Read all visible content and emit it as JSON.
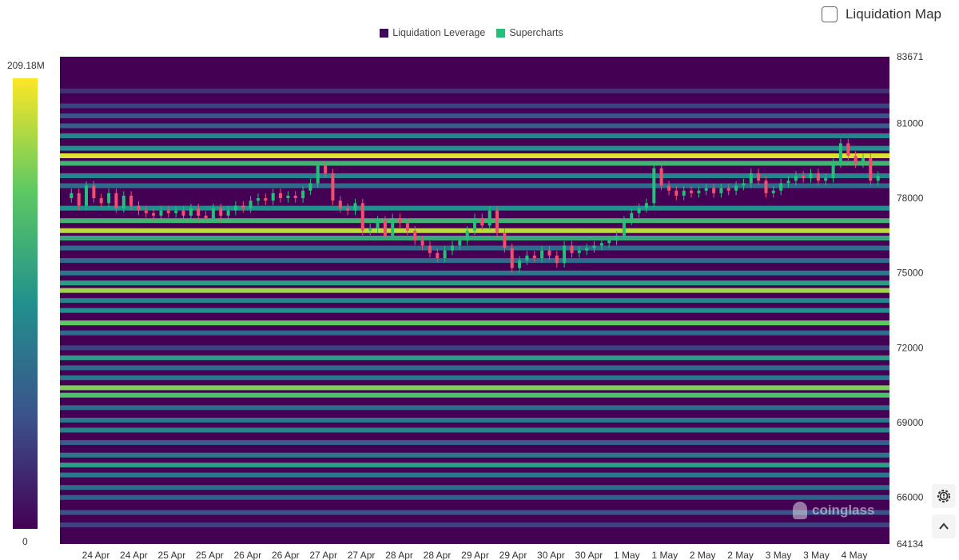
{
  "legend": {
    "items": [
      {
        "label": "Liquidation Leverage",
        "color": "#3d0a5b"
      },
      {
        "label": "Supercharts",
        "color": "#21c17a"
      }
    ]
  },
  "toggle": {
    "label": "Liquidation Map",
    "checked": false
  },
  "colorbar": {
    "max_label": "209.18M",
    "min_label": "0"
  },
  "watermark": {
    "text": "coinglass",
    "icon": "coinglass-logo-icon"
  },
  "controls": {
    "settings_icon": "gear-icon",
    "collapse_icon": "chevron-up-icon"
  },
  "colors": {
    "background": "#440154",
    "up_candle": "#21c17a",
    "down_candle": "#f0506e",
    "scale": [
      "#440154",
      "#3b528b",
      "#21908d",
      "#5dc963",
      "#fde725"
    ]
  },
  "chart_data": {
    "type": "heatmap",
    "title": "",
    "ylim": [
      64134,
      83671
    ],
    "y_ticks": [
      "83671",
      "81000",
      "78000",
      "75000",
      "72000",
      "69000",
      "66000",
      "64134"
    ],
    "x_ticks": [
      "24 Apr",
      "24 Apr",
      "25 Apr",
      "25 Apr",
      "26 Apr",
      "26 Apr",
      "27 Apr",
      "27 Apr",
      "28 Apr",
      "28 Apr",
      "29 Apr",
      "29 Apr",
      "30 Apr",
      "30 Apr",
      "1 May",
      "1 May",
      "2 May",
      "2 May",
      "3 May",
      "3 May",
      "4 May"
    ],
    "color_scale": {
      "min": 0,
      "max": 209.18,
      "unit": "M"
    },
    "liquidation_bands": [
      {
        "price": 82300,
        "intensity": 0.15
      },
      {
        "price": 81700,
        "intensity": 0.2
      },
      {
        "price": 81300,
        "intensity": 0.25
      },
      {
        "price": 80900,
        "intensity": 0.3
      },
      {
        "price": 80500,
        "intensity": 0.45
      },
      {
        "price": 80000,
        "intensity": 0.5
      },
      {
        "price": 79700,
        "intensity": 0.95
      },
      {
        "price": 79400,
        "intensity": 0.65
      },
      {
        "price": 78900,
        "intensity": 0.45
      },
      {
        "price": 78500,
        "intensity": 0.35
      },
      {
        "price": 77600,
        "intensity": 0.5
      },
      {
        "price": 77100,
        "intensity": 0.65
      },
      {
        "price": 76700,
        "intensity": 0.9
      },
      {
        "price": 76400,
        "intensity": 0.6
      },
      {
        "price": 76000,
        "intensity": 0.35
      },
      {
        "price": 75500,
        "intensity": 0.35
      },
      {
        "price": 75000,
        "intensity": 0.4
      },
      {
        "price": 74600,
        "intensity": 0.55
      },
      {
        "price": 74300,
        "intensity": 0.85
      },
      {
        "price": 73900,
        "intensity": 0.45
      },
      {
        "price": 73500,
        "intensity": 0.5
      },
      {
        "price": 73000,
        "intensity": 0.75
      },
      {
        "price": 72600,
        "intensity": 0.35
      },
      {
        "price": 72000,
        "intensity": 0.2
      },
      {
        "price": 71600,
        "intensity": 0.55
      },
      {
        "price": 71200,
        "intensity": 0.35
      },
      {
        "price": 70800,
        "intensity": 0.4
      },
      {
        "price": 70400,
        "intensity": 0.8
      },
      {
        "price": 70100,
        "intensity": 0.7
      },
      {
        "price": 69600,
        "intensity": 0.35
      },
      {
        "price": 69100,
        "intensity": 0.4
      },
      {
        "price": 68700,
        "intensity": 0.45
      },
      {
        "price": 68200,
        "intensity": 0.3
      },
      {
        "price": 67700,
        "intensity": 0.4
      },
      {
        "price": 67300,
        "intensity": 0.55
      },
      {
        "price": 66900,
        "intensity": 0.4
      },
      {
        "price": 66400,
        "intensity": 0.35
      },
      {
        "price": 66000,
        "intensity": 0.3
      },
      {
        "price": 65400,
        "intensity": 0.25
      },
      {
        "price": 64900,
        "intensity": 0.2
      }
    ],
    "price_series": [
      78000,
      78200,
      77700,
      78500,
      78000,
      77800,
      78200,
      77600,
      78100,
      77700,
      77500,
      77400,
      77300,
      77500,
      77400,
      77500,
      77300,
      77600,
      77300,
      77200,
      77600,
      77300,
      77500,
      77700,
      77600,
      77900,
      78000,
      77900,
      78200,
      78000,
      78100,
      78000,
      78300,
      78600,
      79300,
      79000,
      77900,
      77600,
      77500,
      77800,
      76700,
      76800,
      77100,
      76500,
      77200,
      77000,
      76700,
      76300,
      76100,
      75800,
      75600,
      75900,
      76100,
      76300,
      76700,
      77200,
      76900,
      77500,
      76600,
      76000,
      75200,
      75500,
      75700,
      75600,
      75900,
      75700,
      75400,
      76100,
      75800,
      75900,
      76000,
      76100,
      76200,
      76300,
      76500,
      77100,
      77400,
      77600,
      77800,
      79200,
      78500,
      78300,
      78100,
      78300,
      78200,
      78300,
      78400,
      78200,
      78400,
      78300,
      78500,
      78600,
      79000,
      78700,
      78200,
      78300,
      78600,
      78700,
      78900,
      78800,
      79000,
      78700,
      78800,
      79400,
      80200,
      79700,
      79400,
      79600,
      78700,
      78900
    ],
    "candle_colors": {
      "up": "#21c17a",
      "down": "#f0506e"
    }
  }
}
